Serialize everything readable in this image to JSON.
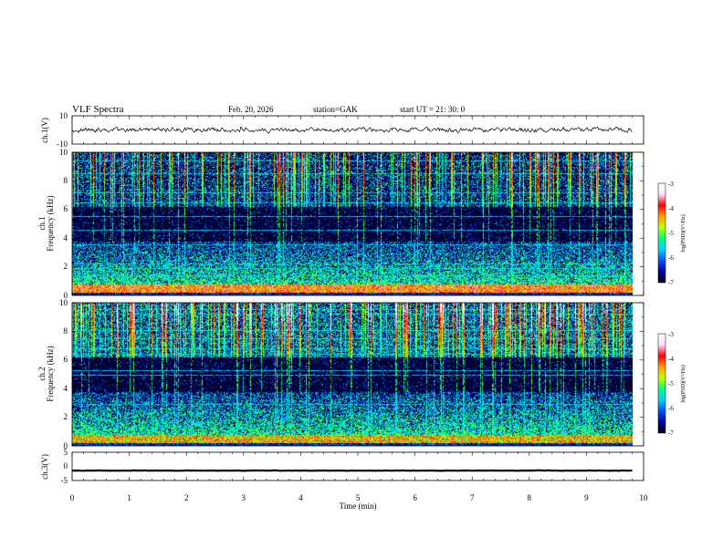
{
  "header": {
    "title": "VLF  Spectra",
    "date": "Feb. 20, 2026",
    "station": "station=GAK",
    "start": "start  UT  =    21: 30: 0"
  },
  "chart_data": {
    "type": "heatmap",
    "title": "VLF  Spectra",
    "xlabel": "Time  (min)",
    "xlim": [
      0,
      10
    ],
    "xticks": [
      "0",
      "1",
      "2",
      "3",
      "4",
      "5",
      "6",
      "7",
      "8",
      "9",
      "10"
    ],
    "panels": [
      {
        "id": "ch1-waveform",
        "type": "line",
        "ylabel": "ch.1(V)",
        "ylim": [
          -10,
          10
        ],
        "yticks": [
          "10",
          "-10"
        ],
        "mean": 0,
        "noise": 1.2
      },
      {
        "id": "ch1-spectrogram",
        "type": "heatmap",
        "ylabel_line1": "ch.1",
        "ylabel_line2": "Frequency  (kHz)",
        "ylim": [
          0,
          10
        ],
        "yticks": [
          "0",
          "2",
          "4",
          "6",
          "8",
          "10"
        ],
        "data_end_min": 9.8
      },
      {
        "id": "ch2-spectrogram",
        "type": "heatmap",
        "ylabel_line1": "ch.2",
        "ylabel_line2": "Frequency  (kHz)",
        "ylim": [
          0,
          10
        ],
        "yticks": [
          "0",
          "2",
          "4",
          "6",
          "8",
          "10"
        ],
        "data_end_min": 9.8
      },
      {
        "id": "ch3-waveform",
        "type": "line",
        "ylabel": "ch.3(V)",
        "ylim": [
          -5,
          5
        ],
        "yticks": [
          "5",
          "0",
          "-5"
        ],
        "mean": -1.5,
        "noise": 0.1
      }
    ],
    "colorbar": {
      "label": "log(PSD)(V²/Hz)",
      "range": [
        -7,
        -3
      ],
      "ticks": [
        "-3",
        "-4",
        "-5",
        "-6",
        "-7"
      ],
      "colors": [
        "#000000",
        "#0000a0",
        "#0050ff",
        "#00d0ff",
        "#00ff80",
        "#c0ff00",
        "#ffa000",
        "#ff0000",
        "#ffe0ff",
        "#ffffff"
      ]
    }
  }
}
